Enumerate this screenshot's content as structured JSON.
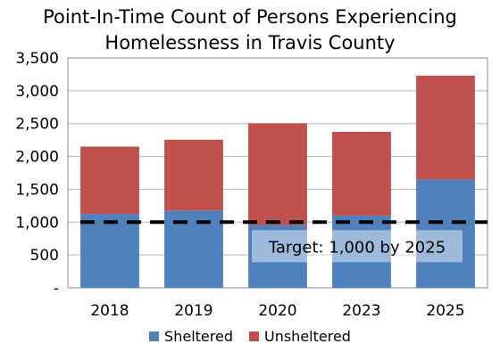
{
  "chart_data": {
    "type": "bar",
    "stacked": true,
    "title_line1": "Point-In-Time Count of Persons Experiencing",
    "title_line2": "Homelessness in Travis County",
    "categories": [
      "2018",
      "2019",
      "2020",
      "2023",
      "2025"
    ],
    "series": [
      {
        "name": "Sheltered",
        "color": "#4f81bd",
        "values": [
          1125,
          1175,
          955,
          1100,
          1650
        ]
      },
      {
        "name": "Unsheltered",
        "color": "#c0504d",
        "values": [
          1025,
          1080,
          1550,
          1275,
          1580
        ]
      }
    ],
    "ylim": [
      0,
      3500
    ],
    "yticks": [
      {
        "value": 3500,
        "label": "3,500"
      },
      {
        "value": 3000,
        "label": "3,000"
      },
      {
        "value": 2500,
        "label": "2,500"
      },
      {
        "value": 2000,
        "label": "2,000"
      },
      {
        "value": 1500,
        "label": "1,500"
      },
      {
        "value": 1000,
        "label": "1,000"
      },
      {
        "value": 500,
        "label": "500"
      },
      {
        "value": 0,
        "label": "-"
      }
    ],
    "xlabel": "",
    "ylabel": "",
    "grid": true,
    "target": {
      "value": 1000,
      "label": "Target: 1,000 by 2025",
      "line_color": "#000000"
    },
    "legend_position": "bottom"
  }
}
